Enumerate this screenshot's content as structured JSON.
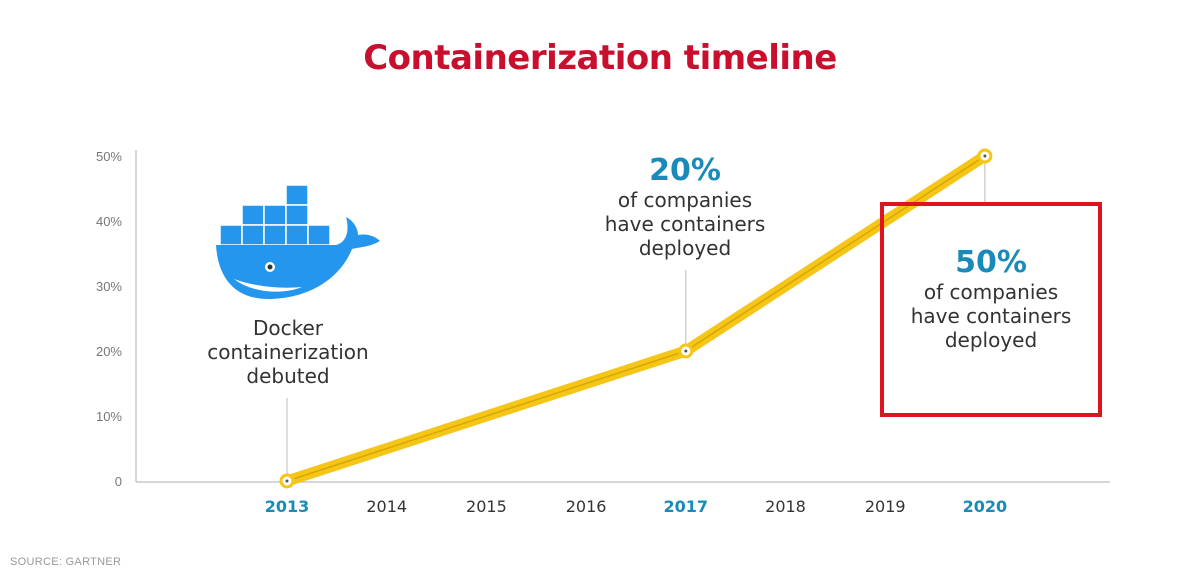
{
  "chart_data": {
    "type": "line",
    "title": "Containerization timeline",
    "xlabel": "",
    "ylabel": "",
    "categories": [
      "2013",
      "2014",
      "2015",
      "2016",
      "2017",
      "2018",
      "2019",
      "2020"
    ],
    "highlighted_categories": [
      "2013",
      "2017",
      "2020"
    ],
    "x": [
      2013,
      2017,
      2020
    ],
    "values": [
      0,
      20,
      50
    ],
    "ylim": [
      0,
      50
    ],
    "yticks": [
      "0",
      "10%",
      "20%",
      "30%",
      "40%",
      "50%"
    ],
    "ytick_values": [
      0,
      10,
      20,
      30,
      40,
      50
    ],
    "grid": false,
    "annotations": [
      {
        "x": 2013,
        "lines": [
          "Docker",
          "containerization",
          "debuted"
        ]
      },
      {
        "x": 2017,
        "big": "20%",
        "lines": [
          "of companies",
          "have containers",
          "deployed"
        ]
      },
      {
        "x": 2020,
        "big": "50%",
        "lines": [
          "of companies",
          "have containers",
          "deployed"
        ]
      }
    ],
    "source": "SOURCE: GARTNER"
  },
  "colors": {
    "title": "#c8102e",
    "line": "#f5c518",
    "highlight": "#1a8bb9",
    "box": "#e0141e",
    "logo": "#2496ed"
  }
}
